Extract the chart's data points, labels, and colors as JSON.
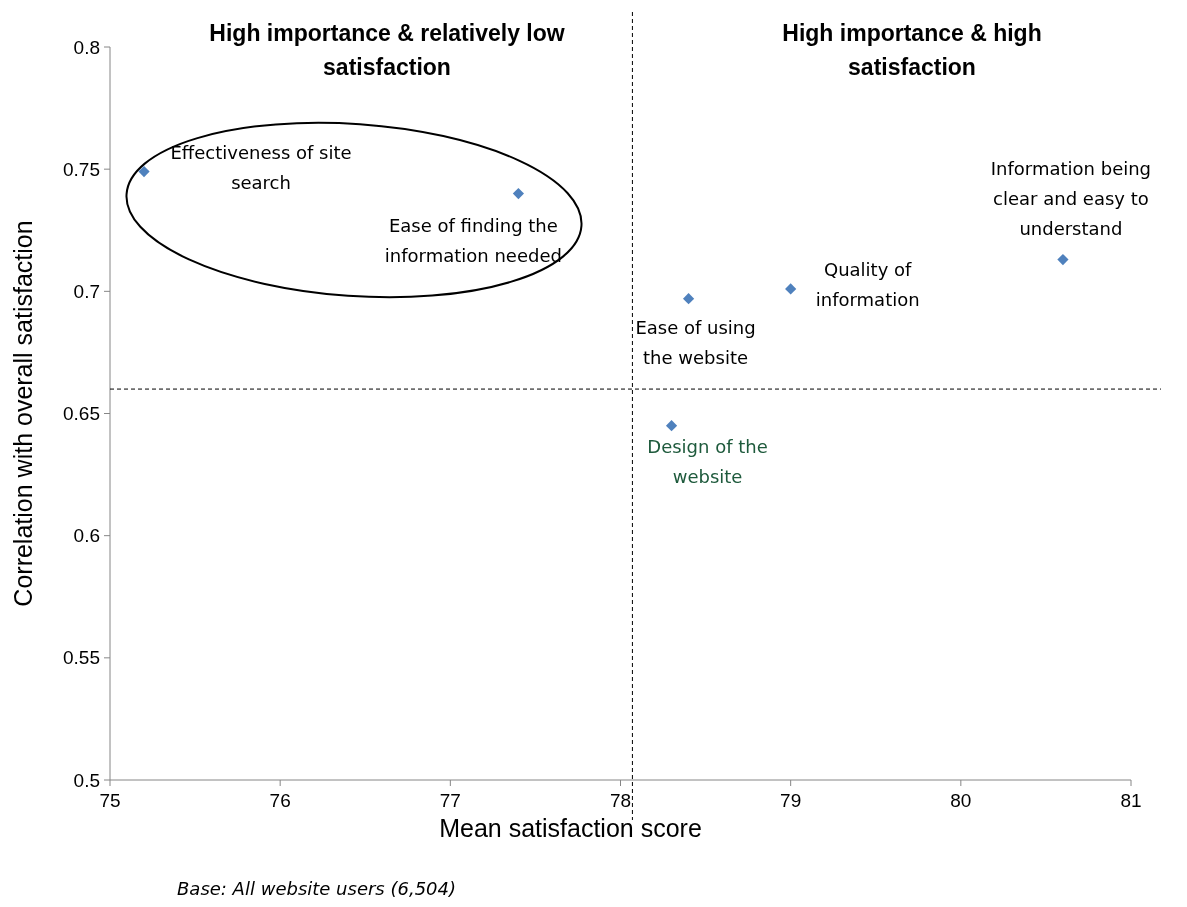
{
  "chart_data": {
    "type": "scatter",
    "xlabel": "Mean satisfaction score",
    "ylabel": "Correlation with overall satisfaction",
    "x": [
      75.2,
      77.4,
      78.4,
      79.0,
      80.6,
      78.3
    ],
    "values": [
      0.749,
      0.74,
      0.697,
      0.701,
      0.713,
      0.645
    ],
    "color": "#4f81bd",
    "marker": "diamond",
    "grid": false,
    "xlim": [
      75,
      81
    ],
    "xticks": [
      75,
      76,
      77,
      78,
      79,
      80,
      81
    ],
    "ylim": [
      0.5,
      0.8
    ],
    "yticks": [
      0.5,
      0.55,
      0.6,
      0.65,
      0.7,
      0.75,
      0.8
    ],
    "ref_lines": [
      {
        "axis": "x",
        "value": 78.07,
        "color": "#000000",
        "line_style": "dashed"
      },
      {
        "axis": "y",
        "value": 0.66,
        "color": "#000000",
        "line_style": "dashed"
      }
    ],
    "annotations": [
      "High importance & relatively low satisfaction",
      "High importance & high satisfaction",
      {
        "text": "Effectiveness of site search",
        "x": 75.2,
        "y": 0.749
      },
      {
        "text": "Ease of finding the information needed",
        "x": 77.4,
        "y": 0.74
      },
      {
        "text": "Ease of using the website",
        "x": 78.4,
        "y": 0.697
      },
      {
        "text": "Quality of information",
        "x": 79.0,
        "y": 0.701
      },
      {
        "text": "Information being clear and easy to understand",
        "x": 80.6,
        "y": 0.713
      },
      {
        "text": "Design of the website",
        "x": 78.3,
        "y": 0.645
      },
      "Base: All website users (6,504)"
    ]
  }
}
